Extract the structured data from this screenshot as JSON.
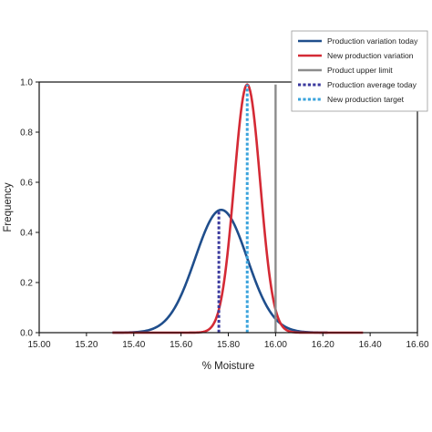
{
  "chart_data": {
    "type": "line",
    "title": "",
    "xlabel": "% Moisture",
    "ylabel": "Frequency",
    "xlim": [
      15.0,
      16.6
    ],
    "ylim": [
      0.0,
      1.0
    ],
    "x_ticks": [
      "15.00",
      "15.20",
      "15.40",
      "15.60",
      "15.80",
      "16.00",
      "16.20",
      "16.40",
      "16.60"
    ],
    "y_ticks": [
      "0.0",
      "0.2",
      "0.4",
      "0.6",
      "0.8",
      "1.0"
    ],
    "grid": false,
    "legend_position": "top-right, outside plot",
    "series": [
      {
        "name": "Production variation today",
        "style": "solid",
        "color": "#1f4e8c",
        "distribution": {
          "mean": 15.77,
          "sd": 0.11,
          "peak": 0.49,
          "x_range": [
            15.31,
            16.22
          ]
        }
      },
      {
        "name": "New production variation",
        "style": "solid",
        "color": "#d42a35",
        "distribution": {
          "mean": 15.88,
          "sd": 0.055,
          "peak": 0.99,
          "x_range": [
            15.31,
            16.37
          ]
        }
      },
      {
        "name": "Product upper limit",
        "style": "solid",
        "color": "#8c8c8c",
        "vline": {
          "x": 16.0,
          "y": [
            0.0,
            0.99
          ]
        }
      },
      {
        "name": "Production average today",
        "style": "dotted",
        "color": "#3b3a9e",
        "vline": {
          "x": 15.76,
          "y": [
            0.0,
            0.49
          ]
        }
      },
      {
        "name": "New production target",
        "style": "dotted",
        "color": "#3aa3dc",
        "vline": {
          "x": 15.88,
          "y": [
            0.0,
            0.99
          ]
        }
      }
    ]
  }
}
